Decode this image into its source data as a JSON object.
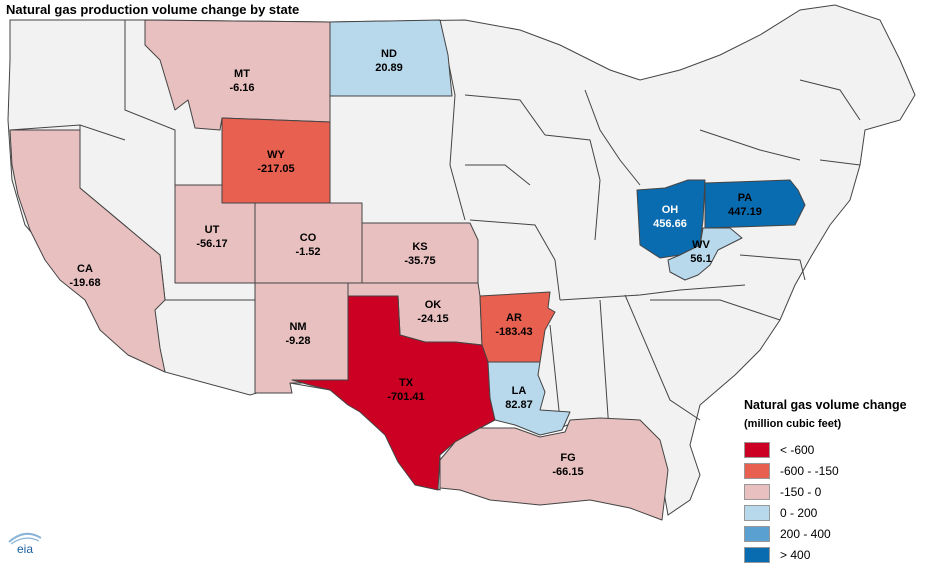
{
  "title": "Natural gas production volume change by state",
  "colors": {
    "lt_neg600": "#cc0022",
    "neg600_neg150": "#e8604f",
    "neg150_0": "#e8c0c0",
    "zero_200": "#b8d8ec",
    "two_400": "#5aa0d0",
    "gt400": "#0a6cb0",
    "other": "#f2f2f2"
  },
  "states": [
    {
      "code": "MT",
      "value": "-6.16"
    },
    {
      "code": "ND",
      "value": "20.89"
    },
    {
      "code": "WY",
      "value": "-217.05"
    },
    {
      "code": "UT",
      "value": "-56.17"
    },
    {
      "code": "CO",
      "value": "-1.52"
    },
    {
      "code": "KS",
      "value": "-35.75"
    },
    {
      "code": "CA",
      "value": "-19.68"
    },
    {
      "code": "NM",
      "value": "-9.28"
    },
    {
      "code": "OK",
      "value": "-24.15"
    },
    {
      "code": "AR",
      "value": "-183.43"
    },
    {
      "code": "TX",
      "value": "-701.41"
    },
    {
      "code": "LA",
      "value": "82.87"
    },
    {
      "code": "FG",
      "value": "-66.15"
    },
    {
      "code": "OH",
      "value": "456.66"
    },
    {
      "code": "PA",
      "value": "447.19"
    },
    {
      "code": "WV",
      "value": "56.1"
    }
  ],
  "legend": {
    "title": "Natural gas volume change",
    "subtitle": "(million cubic feet)",
    "items": [
      "< -600",
      "-600 - -150",
      "-150 - 0",
      "0 - 200",
      "200 - 400",
      "> 400"
    ]
  },
  "logo": {
    "text": "eia"
  }
}
